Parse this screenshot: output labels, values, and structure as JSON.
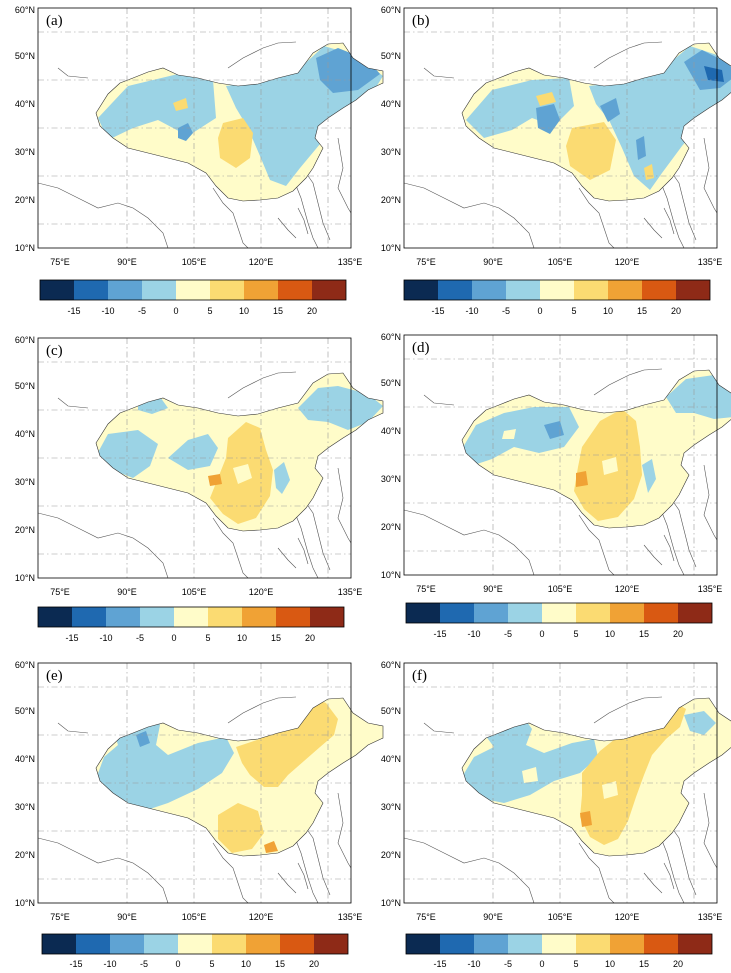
{
  "figure": {
    "panels": [
      {
        "id": "a",
        "label": "(a)",
        "pattern": "fine"
      },
      {
        "id": "b",
        "label": "(b)",
        "pattern": "fine"
      },
      {
        "id": "c",
        "label": "(c)",
        "pattern": "east"
      },
      {
        "id": "d",
        "label": "(d)",
        "pattern": "east"
      },
      {
        "id": "e",
        "label": "(e)",
        "pattern": "strong"
      },
      {
        "id": "f",
        "label": "(f)",
        "pattern": "strong"
      }
    ],
    "lat_labels": [
      "10°N",
      "20°N",
      "30°N",
      "40°N",
      "50°N",
      "60°N"
    ],
    "lon_labels": [
      "75°E",
      "90°E",
      "105°E",
      "120°E",
      "135°E"
    ],
    "colorbar": {
      "ticks": [
        "-15",
        "-10",
        "-5",
        "0",
        "5",
        "10",
        "15",
        "20"
      ],
      "colors": [
        "#0b2a52",
        "#1f69b0",
        "#5fa3d3",
        "#9bd3e5",
        "#fffcc9",
        "#fbdb72",
        "#f0a235",
        "#d95912",
        "#8e2a17"
      ]
    },
    "map_colors": {
      "background": "#ffffff",
      "china_base": "#fffcc9",
      "blue_light": "#9bd3e5",
      "blue_mid": "#5fa3d3",
      "orange_light": "#fbdb72",
      "orange_mid": "#f0a235",
      "border": "#333333"
    }
  }
}
